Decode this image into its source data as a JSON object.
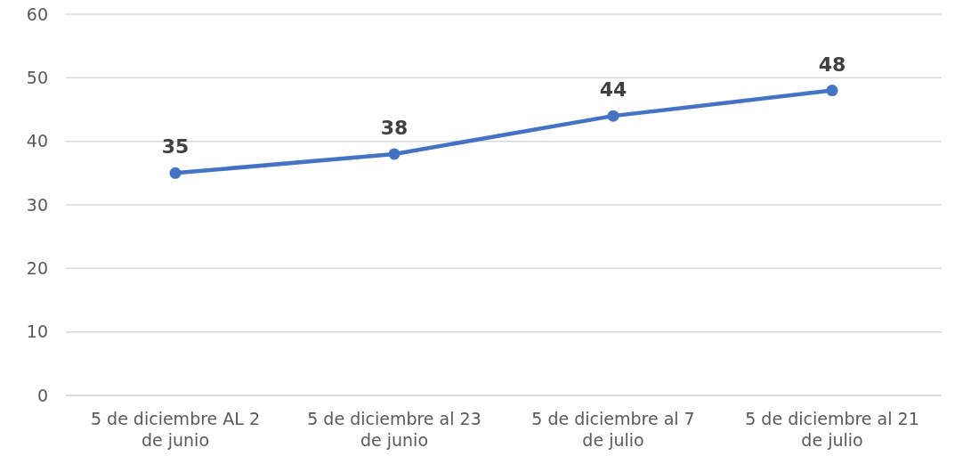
{
  "chart_data": {
    "type": "line",
    "categories": [
      "5 de diciembre AL 2 de junio",
      "5 de diciembre al 23 de junio",
      "5 de diciembre al 7 de julio",
      "5 de diciembre al 21 de julio"
    ],
    "series": [
      {
        "color": "#4472c4",
        "values": [
          35,
          38,
          44,
          48
        ]
      }
    ],
    "ylim": [
      0,
      60
    ],
    "yticks": [
      0,
      10,
      20,
      30,
      40,
      50,
      60
    ],
    "grid": "y",
    "marker": "circle",
    "line_style": "solid",
    "data_labels": true
  }
}
